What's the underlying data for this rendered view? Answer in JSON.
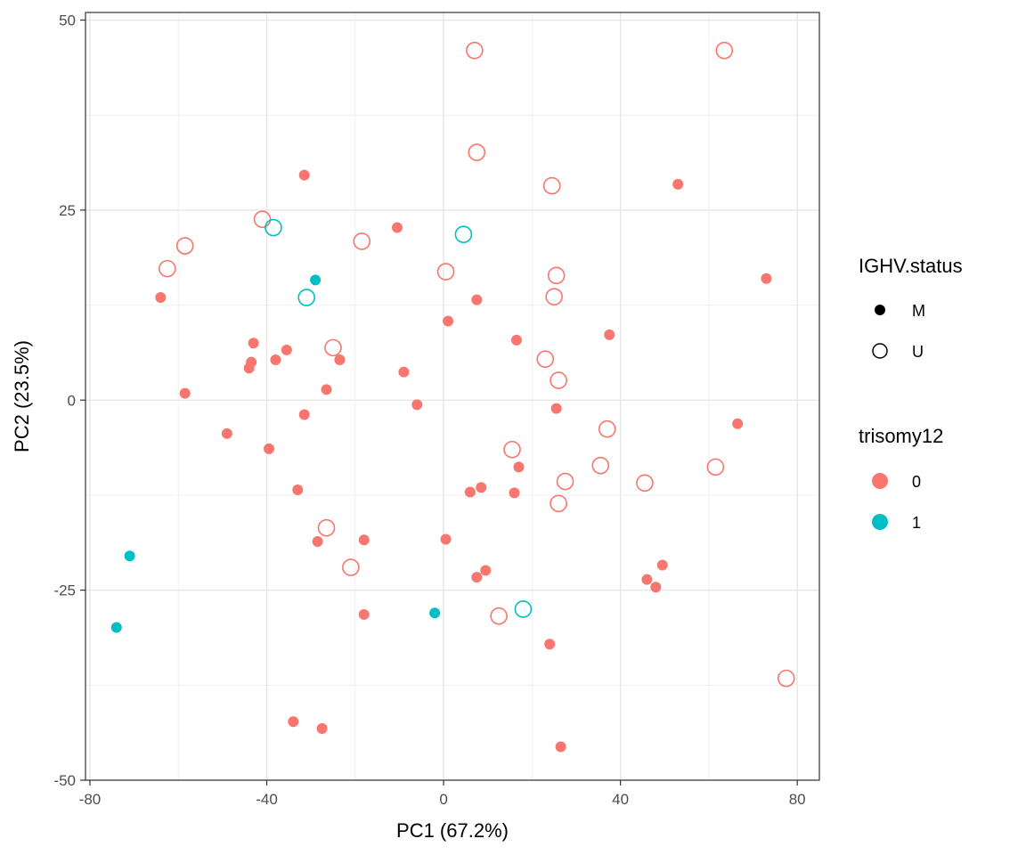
{
  "chart_data": {
    "type": "scatter",
    "title": "",
    "xlabel": "PC1 (67.2%)",
    "ylabel": "PC2 (23.5%)",
    "xlim": [
      -81,
      85
    ],
    "ylim": [
      -50,
      51
    ],
    "xticks": [
      -80,
      -40,
      0,
      40,
      80
    ],
    "xtick_labels": [
      "-80",
      "-40",
      "0",
      "40",
      "80"
    ],
    "yticks": [
      50,
      25,
      0,
      -25,
      -50
    ],
    "ytick_labels": [
      "50",
      "25",
      "0",
      "-25",
      "-50"
    ],
    "grid": true,
    "legend_placement": "right",
    "colors": {
      "0": "#F8766D",
      "1": "#00BFC4"
    },
    "legend": {
      "shape_title": "IGHV.status",
      "shape_items": [
        {
          "label": "M",
          "shape": "filled-circle"
        },
        {
          "label": "U",
          "shape": "open-circle"
        }
      ],
      "color_title": "trisomy12",
      "color_items": [
        {
          "label": "0",
          "color": "#F8766D"
        },
        {
          "label": "1",
          "color": "#00BFC4"
        }
      ]
    },
    "points": [
      {
        "x": 7,
        "y": 46,
        "ighv": "U",
        "trisomy12": "0"
      },
      {
        "x": 63.5,
        "y": 46,
        "ighv": "U",
        "trisomy12": "0"
      },
      {
        "x": 7.5,
        "y": 32.6,
        "ighv": "U",
        "trisomy12": "0"
      },
      {
        "x": -31.5,
        "y": 29.6,
        "ighv": "M",
        "trisomy12": "0"
      },
      {
        "x": 24.5,
        "y": 28.2,
        "ighv": "U",
        "trisomy12": "0"
      },
      {
        "x": 53,
        "y": 28.4,
        "ighv": "M",
        "trisomy12": "0"
      },
      {
        "x": -41,
        "y": 23.8,
        "ighv": "U",
        "trisomy12": "0"
      },
      {
        "x": -38.5,
        "y": 22.7,
        "ighv": "U",
        "trisomy12": "1"
      },
      {
        "x": -10.5,
        "y": 22.7,
        "ighv": "M",
        "trisomy12": "0"
      },
      {
        "x": 4.5,
        "y": 21.8,
        "ighv": "U",
        "trisomy12": "1"
      },
      {
        "x": -58.5,
        "y": 20.3,
        "ighv": "U",
        "trisomy12": "0"
      },
      {
        "x": -18.5,
        "y": 20.9,
        "ighv": "U",
        "trisomy12": "0"
      },
      {
        "x": -62.5,
        "y": 17.3,
        "ighv": "U",
        "trisomy12": "0"
      },
      {
        "x": 0.5,
        "y": 16.9,
        "ighv": "U",
        "trisomy12": "0"
      },
      {
        "x": 25.5,
        "y": 16.4,
        "ighv": "U",
        "trisomy12": "0"
      },
      {
        "x": 73,
        "y": 16,
        "ighv": "M",
        "trisomy12": "0"
      },
      {
        "x": -29,
        "y": 15.8,
        "ighv": "M",
        "trisomy12": "1"
      },
      {
        "x": -64,
        "y": 13.5,
        "ighv": "M",
        "trisomy12": "0"
      },
      {
        "x": -31,
        "y": 13.5,
        "ighv": "U",
        "trisomy12": "1"
      },
      {
        "x": 7.5,
        "y": 13.2,
        "ighv": "M",
        "trisomy12": "0"
      },
      {
        "x": 25,
        "y": 13.6,
        "ighv": "U",
        "trisomy12": "0"
      },
      {
        "x": 1,
        "y": 10.4,
        "ighv": "M",
        "trisomy12": "0"
      },
      {
        "x": 37.5,
        "y": 8.6,
        "ighv": "M",
        "trisomy12": "0"
      },
      {
        "x": 16.5,
        "y": 7.9,
        "ighv": "M",
        "trisomy12": "0"
      },
      {
        "x": -43,
        "y": 7.5,
        "ighv": "M",
        "trisomy12": "0"
      },
      {
        "x": -25,
        "y": 6.9,
        "ighv": "U",
        "trisomy12": "0"
      },
      {
        "x": -35.5,
        "y": 6.6,
        "ighv": "M",
        "trisomy12": "0"
      },
      {
        "x": 23,
        "y": 5.4,
        "ighv": "U",
        "trisomy12": "0"
      },
      {
        "x": -43.5,
        "y": 5,
        "ighv": "M",
        "trisomy12": "0"
      },
      {
        "x": -38,
        "y": 5.3,
        "ighv": "M",
        "trisomy12": "0"
      },
      {
        "x": -23.5,
        "y": 5.3,
        "ighv": "M",
        "trisomy12": "0"
      },
      {
        "x": -44,
        "y": 4.2,
        "ighv": "M",
        "trisomy12": "0"
      },
      {
        "x": -9,
        "y": 3.7,
        "ighv": "M",
        "trisomy12": "0"
      },
      {
        "x": 26,
        "y": 2.6,
        "ighv": "U",
        "trisomy12": "0"
      },
      {
        "x": -26.5,
        "y": 1.4,
        "ighv": "M",
        "trisomy12": "0"
      },
      {
        "x": -58.5,
        "y": 0.9,
        "ighv": "M",
        "trisomy12": "0"
      },
      {
        "x": -6,
        "y": -0.6,
        "ighv": "M",
        "trisomy12": "0"
      },
      {
        "x": 25.5,
        "y": -1.1,
        "ighv": "M",
        "trisomy12": "0"
      },
      {
        "x": -31.5,
        "y": -1.9,
        "ighv": "M",
        "trisomy12": "0"
      },
      {
        "x": 66.5,
        "y": -3.1,
        "ighv": "M",
        "trisomy12": "0"
      },
      {
        "x": 37,
        "y": -3.8,
        "ighv": "U",
        "trisomy12": "0"
      },
      {
        "x": -49,
        "y": -4.4,
        "ighv": "M",
        "trisomy12": "0"
      },
      {
        "x": -39.5,
        "y": -6.4,
        "ighv": "M",
        "trisomy12": "0"
      },
      {
        "x": 15.5,
        "y": -6.5,
        "ighv": "U",
        "trisomy12": "0"
      },
      {
        "x": 35.5,
        "y": -8.6,
        "ighv": "U",
        "trisomy12": "0"
      },
      {
        "x": 61.5,
        "y": -8.8,
        "ighv": "U",
        "trisomy12": "0"
      },
      {
        "x": 17,
        "y": -8.8,
        "ighv": "M",
        "trisomy12": "0"
      },
      {
        "x": 27.5,
        "y": -10.7,
        "ighv": "U",
        "trisomy12": "0"
      },
      {
        "x": 45.5,
        "y": -10.9,
        "ighv": "U",
        "trisomy12": "0"
      },
      {
        "x": 8.5,
        "y": -11.5,
        "ighv": "M",
        "trisomy12": "0"
      },
      {
        "x": -33,
        "y": -11.8,
        "ighv": "M",
        "trisomy12": "0"
      },
      {
        "x": 6,
        "y": -12.1,
        "ighv": "M",
        "trisomy12": "0"
      },
      {
        "x": 16,
        "y": -12.2,
        "ighv": "M",
        "trisomy12": "0"
      },
      {
        "x": 26,
        "y": -13.6,
        "ighv": "U",
        "trisomy12": "0"
      },
      {
        "x": -26.5,
        "y": -16.8,
        "ighv": "U",
        "trisomy12": "0"
      },
      {
        "x": 0.5,
        "y": -18.3,
        "ighv": "M",
        "trisomy12": "0"
      },
      {
        "x": -18,
        "y": -18.4,
        "ighv": "M",
        "trisomy12": "0"
      },
      {
        "x": -28.5,
        "y": -18.6,
        "ighv": "M",
        "trisomy12": "0"
      },
      {
        "x": -71,
        "y": -20.5,
        "ighv": "M",
        "trisomy12": "1"
      },
      {
        "x": 49.5,
        "y": -21.7,
        "ighv": "M",
        "trisomy12": "0"
      },
      {
        "x": -21,
        "y": -22,
        "ighv": "U",
        "trisomy12": "0"
      },
      {
        "x": 9.5,
        "y": -22.4,
        "ighv": "M",
        "trisomy12": "0"
      },
      {
        "x": 7.5,
        "y": -23.3,
        "ighv": "M",
        "trisomy12": "0"
      },
      {
        "x": 46,
        "y": -23.6,
        "ighv": "M",
        "trisomy12": "0"
      },
      {
        "x": 48,
        "y": -24.6,
        "ighv": "M",
        "trisomy12": "0"
      },
      {
        "x": 18,
        "y": -27.5,
        "ighv": "U",
        "trisomy12": "1"
      },
      {
        "x": -2,
        "y": -28,
        "ighv": "M",
        "trisomy12": "1"
      },
      {
        "x": -18,
        "y": -28.2,
        "ighv": "M",
        "trisomy12": "0"
      },
      {
        "x": 12.5,
        "y": -28.4,
        "ighv": "U",
        "trisomy12": "0"
      },
      {
        "x": -74,
        "y": -29.9,
        "ighv": "M",
        "trisomy12": "1"
      },
      {
        "x": 24,
        "y": -32.1,
        "ighv": "M",
        "trisomy12": "0"
      },
      {
        "x": 77.5,
        "y": -36.6,
        "ighv": "U",
        "trisomy12": "0"
      },
      {
        "x": -34,
        "y": -42.3,
        "ighv": "M",
        "trisomy12": "0"
      },
      {
        "x": -27.5,
        "y": -43.2,
        "ighv": "M",
        "trisomy12": "0"
      },
      {
        "x": 26.5,
        "y": -45.6,
        "ighv": "M",
        "trisomy12": "0"
      }
    ]
  }
}
